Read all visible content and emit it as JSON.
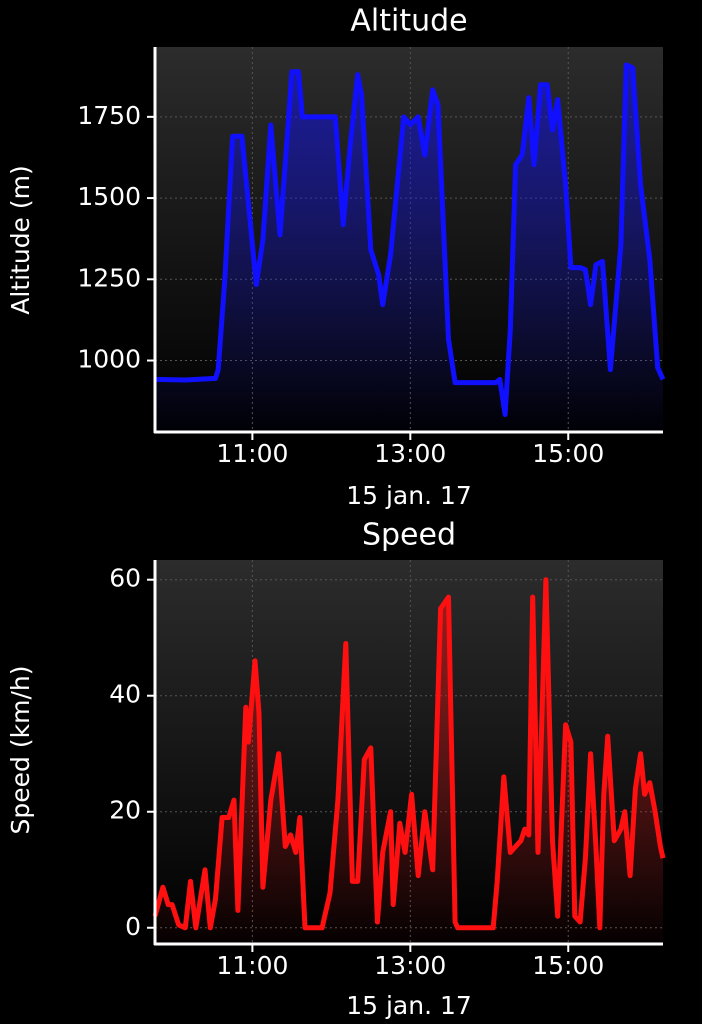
{
  "chart_data": [
    {
      "type": "area",
      "title": "Altitude",
      "x_label": "15 jan. 17",
      "y_label": "Altitude (m)",
      "color": "#1010ff",
      "grid": true,
      "xlim": [
        "09:46",
        "16:12"
      ],
      "xticks": [
        "11:00",
        "13:00",
        "15:00"
      ],
      "ylim": [
        780,
        1965
      ],
      "yticks": [
        1000,
        1250,
        1500,
        1750
      ],
      "x": [
        "09:46",
        "10:09",
        "10:32",
        "10:34",
        "10:39",
        "10:45",
        "10:52",
        "11:03",
        "11:08",
        "11:14",
        "11:21",
        "11:30",
        "11:35",
        "11:38",
        "12:03",
        "12:09",
        "12:14",
        "12:20",
        "12:23",
        "12:30",
        "12:36",
        "12:39",
        "12:45",
        "12:55",
        "13:00",
        "13:06",
        "13:11",
        "13:17",
        "13:21",
        "13:29",
        "13:34",
        "14:05",
        "14:08",
        "14:12",
        "14:16",
        "14:20",
        "14:25",
        "14:30",
        "14:34",
        "14:39",
        "14:44",
        "14:48",
        "14:52",
        "14:58",
        "15:02",
        "15:09",
        "15:13",
        "15:17",
        "15:21",
        "15:26",
        "15:32",
        "15:40",
        "15:44",
        "15:49",
        "15:55",
        "16:02",
        "16:08",
        "16:12"
      ],
      "values": [
        942,
        940,
        945,
        972,
        1250,
        1690,
        1690,
        1234,
        1372,
        1725,
        1387,
        1889,
        1889,
        1750,
        1750,
        1418,
        1649,
        1880,
        1818,
        1341,
        1264,
        1172,
        1326,
        1750,
        1726,
        1750,
        1633,
        1833,
        1787,
        1065,
        932,
        932,
        942,
        834,
        1095,
        1603,
        1633,
        1809,
        1603,
        1849,
        1849,
        1710,
        1803,
        1541,
        1286,
        1286,
        1280,
        1172,
        1295,
        1305,
        972,
        1357,
        1910,
        1901,
        1541,
        1311,
        978,
        942
      ]
    },
    {
      "type": "area",
      "title": "Speed",
      "x_label": "15 jan. 17",
      "y_label": "Speed (km/h)",
      "color": "#ff1010",
      "grid": true,
      "xlim": [
        "09:46",
        "16:12"
      ],
      "xticks": [
        "11:00",
        "13:00",
        "15:00"
      ],
      "ylim": [
        -2.8,
        63.4
      ],
      "yticks": [
        0,
        20,
        40,
        60
      ],
      "x": [
        "09:46",
        "09:52",
        "09:56",
        "09:59",
        "10:04",
        "10:09",
        "10:13",
        "10:17",
        "10:24",
        "10:28",
        "10:32",
        "10:37",
        "10:42",
        "10:46",
        "10:49",
        "10:55",
        "10:57",
        "11:02",
        "11:05",
        "11:08",
        "11:14",
        "11:20",
        "11:25",
        "11:29",
        "11:33",
        "11:36",
        "11:40",
        "11:53",
        "11:59",
        "12:05",
        "12:11",
        "12:16",
        "12:20",
        "12:25",
        "12:30",
        "12:35",
        "12:39",
        "12:45",
        "12:47",
        "12:52",
        "12:56",
        "13:01",
        "13:06",
        "13:11",
        "13:17",
        "13:23",
        "13:29",
        "13:34",
        "13:36",
        "14:03",
        "14:06",
        "14:11",
        "14:16",
        "14:20",
        "14:24",
        "14:27",
        "14:30",
        "14:33",
        "14:37",
        "14:43",
        "14:48",
        "14:52",
        "14:58",
        "15:02",
        "15:05",
        "15:09",
        "15:13",
        "15:17",
        "15:21",
        "15:24",
        "15:27",
        "15:30",
        "15:35",
        "15:40",
        "15:43",
        "15:47",
        "15:51",
        "15:55",
        "15:58",
        "16:02",
        "16:06",
        "16:10",
        "16:12"
      ],
      "values": [
        2,
        7,
        4,
        4,
        0.5,
        0,
        8,
        0,
        10,
        0,
        5,
        19,
        19,
        22,
        3,
        38,
        32,
        46,
        37,
        7,
        22,
        30,
        14,
        16,
        13,
        19,
        0,
        0,
        6,
        22,
        49,
        8,
        8,
        29,
        31,
        1,
        13,
        20,
        4,
        18,
        13,
        23,
        9,
        20,
        10,
        55,
        57,
        1,
        0,
        0,
        8,
        26,
        13,
        14,
        15,
        17,
        16,
        57,
        13,
        60,
        15,
        2,
        35,
        32,
        2,
        1,
        12,
        30,
        14,
        0,
        23,
        33,
        15,
        17,
        20,
        9,
        24,
        30,
        23,
        25,
        20,
        14,
        12
      ]
    }
  ]
}
